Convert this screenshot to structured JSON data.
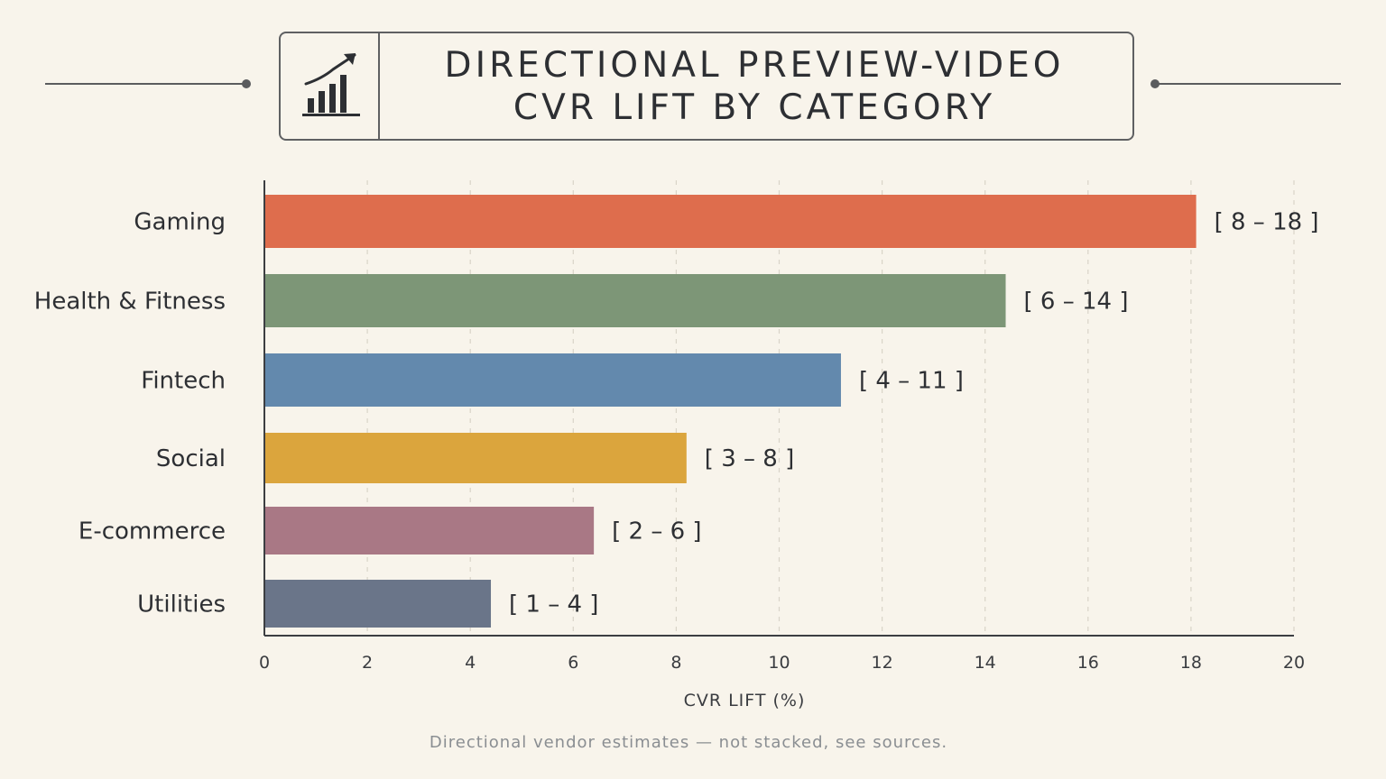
{
  "header": {
    "title_line1": "DIRECTIONAL PREVIEW-VIDEO",
    "title_line2": "CVR LIFT BY CATEGORY",
    "icon": "bar-chart-trend-up-icon"
  },
  "footnote": "Directional vendor estimates — not stacked, see sources.",
  "chart_data": {
    "type": "bar",
    "orientation": "horizontal",
    "title": "DIRECTIONAL PREVIEW-VIDEO CVR LIFT BY CATEGORY",
    "xlabel": "CVR LIFT (%)",
    "ylabel": "",
    "xlim": [
      0,
      20
    ],
    "xticks": [
      0,
      2,
      4,
      6,
      8,
      10,
      12,
      14,
      16,
      18,
      20
    ],
    "grid": "vertical-dashed",
    "categories": [
      "Gaming",
      "Health & Fitness",
      "Fintech",
      "Social",
      "E-commerce",
      "Utilities"
    ],
    "values": [
      18.1,
      14.4,
      11.2,
      8.2,
      6.4,
      4.4
    ],
    "ranges": [
      {
        "low": 8,
        "high": 18,
        "label": "[ 8 – 18 ]"
      },
      {
        "low": 6,
        "high": 14,
        "label": "[ 6 – 14 ]"
      },
      {
        "low": 4,
        "high": 11,
        "label": "[ 4 – 11 ]"
      },
      {
        "low": 3,
        "high": 8,
        "label": "[ 3 – 8 ]"
      },
      {
        "low": 2,
        "high": 6,
        "label": "[ 2 – 6 ]"
      },
      {
        "low": 1,
        "high": 4,
        "label": "[ 1 – 4 ]"
      }
    ],
    "colors": [
      "#de6d4d",
      "#7d9677",
      "#6389ad",
      "#dba53d",
      "#a97885",
      "#6a7589"
    ]
  }
}
